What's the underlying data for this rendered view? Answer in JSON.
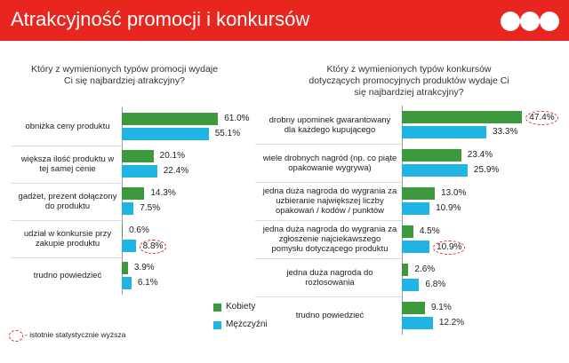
{
  "header": {
    "title": "Atrakcyjność promocji i konkursów"
  },
  "note": "- istotnie statystycznie wyższa",
  "chart_data": [
    {
      "type": "bar",
      "orientation": "horizontal",
      "title": "Który z wymienionych typów promocji wydaje Ci się najbardziej atrakcyjny?",
      "categories": [
        "obniżka ceny produktu",
        "większa ilość produktu w tej samej cenie",
        "gadżet, prezent dołączony do produktu",
        "udział w konkursie przy zakupie produktu",
        "trudno powiedzieć"
      ],
      "xlim": [
        0,
        62
      ],
      "series": [
        {
          "name": "Kobiety",
          "color": "#3c9a3c",
          "values": [
            61.0,
            20.1,
            14.3,
            0.6,
            3.9
          ],
          "value_labels": [
            "61.0%",
            "20.1%",
            "14.3%",
            "0.6%",
            "3.9%"
          ],
          "highlight": [
            false,
            false,
            false,
            false,
            false
          ]
        },
        {
          "name": "Mężczyźni",
          "color": "#1fb4e4",
          "values": [
            55.1,
            22.4,
            7.5,
            8.8,
            6.1
          ],
          "value_labels": [
            "55.1%",
            "22.4%",
            "7.5%",
            "8.8%",
            "6.1%"
          ],
          "highlight": [
            false,
            false,
            false,
            true,
            false
          ]
        }
      ]
    },
    {
      "type": "bar",
      "orientation": "horizontal",
      "title": "Który z wymienionych typów konkursów dotyczących promocyjnych produktów wydaje Ci się najbardziej atrakcyjny?",
      "categories": [
        "drobny upominek gwarantowany dla każdego kupującego",
        "wiele drobnych nagród (np. co piąte opakowanie wygrywa)",
        "jedna duża nagroda do wygrania za uzbieranie największej liczby opakowań / kodów / punktów",
        "jedna duża nagroda do wygrania za zgłoszenie najciekawszego pomysłu dotyczącego produktu",
        "jedna duża nagroda do rozlosowania",
        "trudno powiedzieć"
      ],
      "xlim": [
        0,
        48
      ],
      "series": [
        {
          "name": "Kobiety",
          "color": "#3c9a3c",
          "values": [
            47.4,
            23.4,
            13.0,
            4.5,
            2.6,
            9.1
          ],
          "value_labels": [
            "47.4%",
            "23.4%",
            "13.0%",
            "4.5%",
            "2.6%",
            "9.1%"
          ],
          "highlight": [
            true,
            false,
            false,
            false,
            false,
            false
          ]
        },
        {
          "name": "Mężczyźni",
          "color": "#1fb4e4",
          "values": [
            33.3,
            25.9,
            10.9,
            10.9,
            6.8,
            12.2
          ],
          "value_labels": [
            "33.3%",
            "25.9%",
            "10.9%",
            "10.9%",
            "6.8%",
            "12.2%"
          ],
          "highlight": [
            false,
            false,
            false,
            true,
            false,
            false
          ]
        }
      ]
    }
  ]
}
